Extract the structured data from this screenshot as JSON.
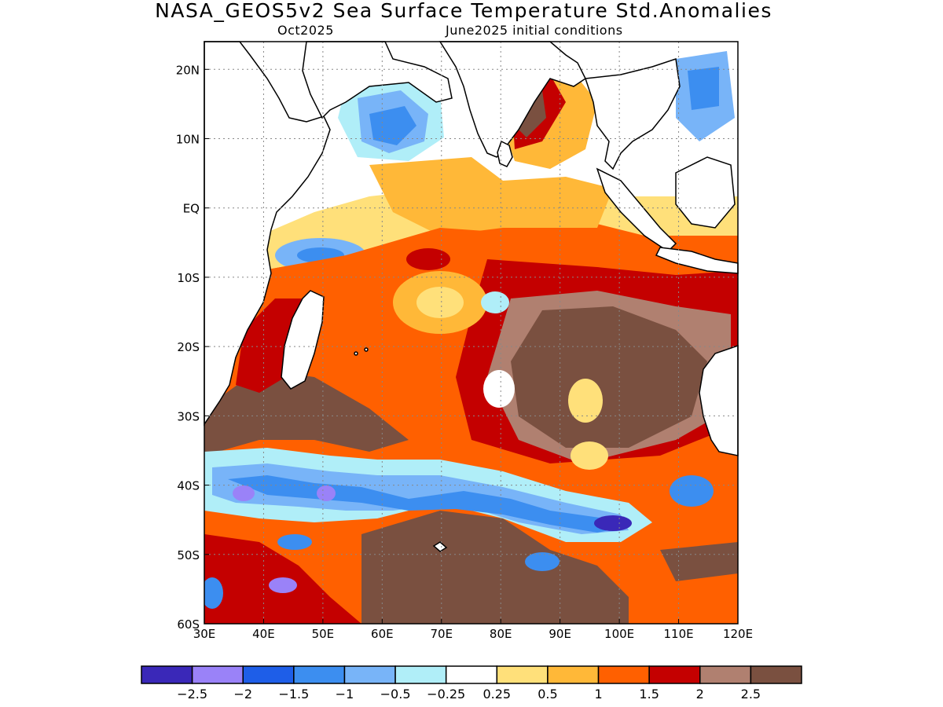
{
  "title": "NASA_GEOS5v2 Sea Surface Temperature Std.Anomalies",
  "subtitle_left": "Oct2025",
  "subtitle_right": "June2025 initial conditions",
  "map": {
    "lon_range": [
      30,
      120
    ],
    "lat_range": [
      -60,
      24
    ],
    "lon_ticks": [
      "30E",
      "40E",
      "50E",
      "60E",
      "70E",
      "80E",
      "90E",
      "100E",
      "110E",
      "120E"
    ],
    "lat_ticks": [
      "20N",
      "10N",
      "EQ",
      "10S",
      "20S",
      "30S",
      "40S",
      "50S",
      "60S"
    ],
    "grid": true,
    "land_color": "#ffffff",
    "coastline_color": "#000000"
  },
  "colorbar": {
    "colors": [
      "#3a28b8",
      "#9a82f8",
      "#1e5ee8",
      "#3c8ef0",
      "#78b4f8",
      "#b0eef8",
      "#ffffff",
      "#ffe07a",
      "#ffb838",
      "#ff6000",
      "#c40000",
      "#b08070",
      "#7a5040"
    ],
    "labels": [
      "−2.5",
      "−2",
      "−1.5",
      "−1",
      "−0.5",
      "−0.25",
      "0.25",
      "0.5",
      "1",
      "1.5",
      "2",
      "2.5"
    ]
  },
  "colors": {
    "neg_strong": "#3a28b8",
    "neg": "#3c8ef0",
    "pos": "#ff6000",
    "pos_strong": "#7a5040"
  }
}
